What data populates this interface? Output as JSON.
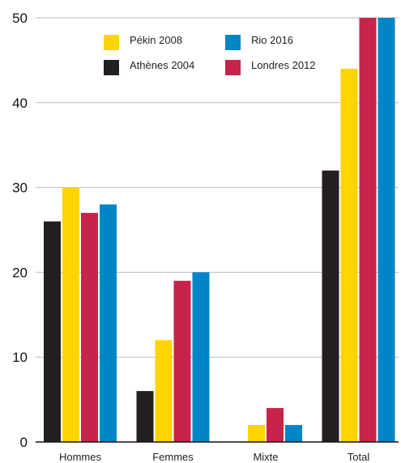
{
  "chart_data": {
    "type": "bar",
    "categories": [
      "Hommes",
      "Femmes",
      "Mixte",
      "Total"
    ],
    "series": [
      {
        "name": "Athènes 2004",
        "color": "#231f20",
        "values": [
          26,
          6,
          0,
          32
        ]
      },
      {
        "name": "Pékin 2008",
        "color": "#ffd500",
        "values": [
          30,
          12,
          2,
          44
        ]
      },
      {
        "name": "Londres 2012",
        "color": "#c8234a",
        "values": [
          27,
          19,
          4,
          50
        ]
      },
      {
        "name": "Rio 2016",
        "color": "#0085c7",
        "values": [
          28,
          20,
          2,
          50
        ]
      }
    ],
    "yticks": [
      0,
      10,
      20,
      30,
      40,
      50
    ],
    "ylim": [
      0,
      50
    ],
    "grid": true,
    "legend_position": "top-left",
    "legend_order": [
      1,
      3,
      0,
      2
    ]
  }
}
